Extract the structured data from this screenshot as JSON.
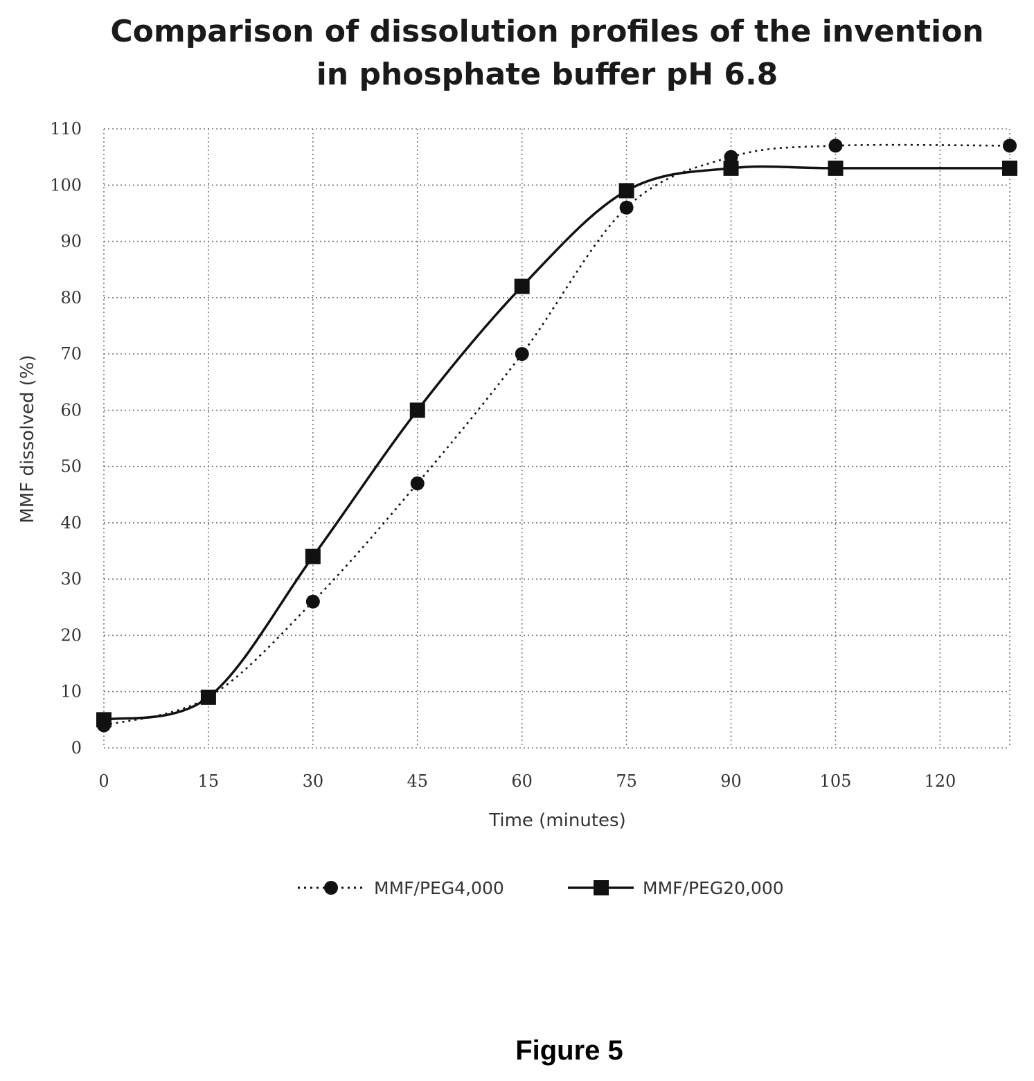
{
  "chart_data": {
    "type": "line",
    "title": [
      "Comparison of dissolution profiles of the invention",
      "in phosphate buffer pH 6.8"
    ],
    "xlabel": "Time (minutes)",
    "ylabel": "MMF dissolved (%)",
    "x_ticks": [
      "0",
      "15",
      "30",
      "45",
      "60",
      "75",
      "90",
      "105",
      "120"
    ],
    "y_ticks": [
      "0",
      "10",
      "20",
      "30",
      "40",
      "50",
      "60",
      "70",
      "80",
      "90",
      "100",
      "110"
    ],
    "xlim": [
      0,
      130
    ],
    "ylim": [
      0,
      110
    ],
    "grid": true,
    "legend_position": "bottom",
    "x": [
      0,
      15,
      30,
      45,
      60,
      75,
      90,
      105,
      130
    ],
    "series": [
      {
        "name": "MMF/PEG4,000",
        "marker": "circle",
        "line": "dotted",
        "values": [
          4,
          9,
          26,
          47,
          70,
          96,
          105,
          107,
          107
        ]
      },
      {
        "name": "MMF/PEG20,000",
        "marker": "square",
        "line": "solid",
        "values": [
          5,
          9,
          34,
          60,
          82,
          99,
          103,
          103,
          103
        ]
      }
    ]
  },
  "caption": "Figure 5",
  "colors": {
    "ink": "#111111",
    "grid": "#777777"
  }
}
